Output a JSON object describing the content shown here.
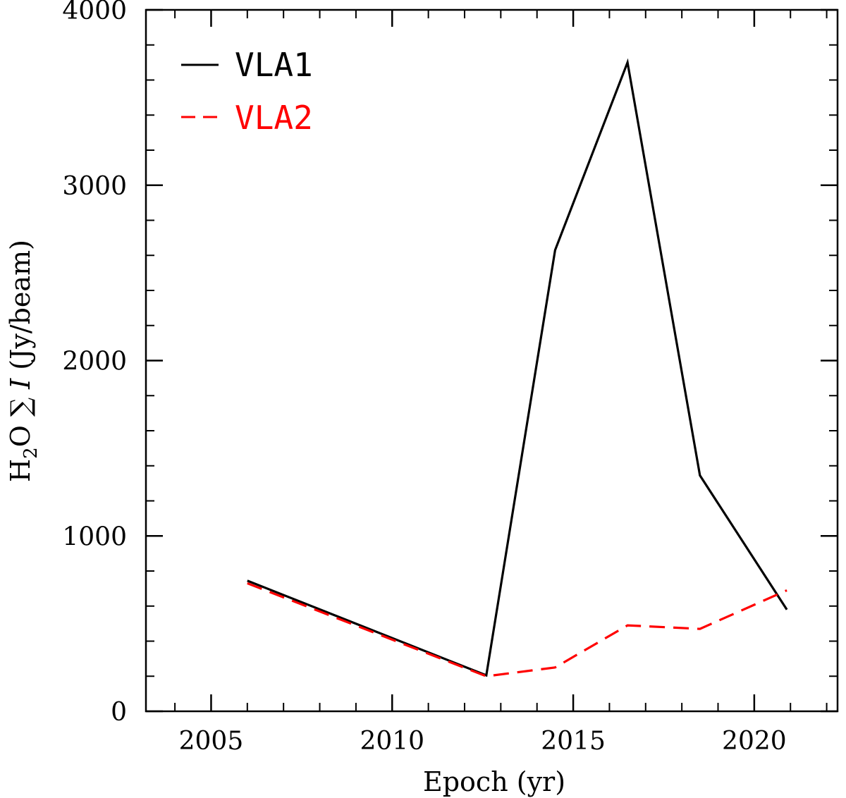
{
  "chart_data": {
    "type": "line",
    "xlabel": "Epoch (yr)",
    "ylabel_parts": {
      "prefix": "H",
      "subscript": "2",
      "middle": "O ∑ ",
      "italic": "I",
      "suffix": " (Jy/beam)"
    },
    "xlim": [
      2003.2,
      2022.3
    ],
    "ylim": [
      0,
      4000
    ],
    "x_ticks": [
      2005,
      2010,
      2015,
      2020
    ],
    "x_minor_step": 1,
    "y_ticks": [
      0,
      1000,
      2000,
      3000,
      4000
    ],
    "y_minor_step": 200,
    "series": [
      {
        "name": "VLA1",
        "color": "#000000",
        "dash": "solid",
        "x": [
          2006.0,
          2012.6,
          2014.5,
          2016.5,
          2018.5,
          2020.9
        ],
        "y": [
          745,
          205,
          2630,
          3700,
          1345,
          580
        ]
      },
      {
        "name": "VLA2",
        "color": "#ff0000",
        "dash": "dashed",
        "x": [
          2006.0,
          2012.6,
          2014.5,
          2016.5,
          2018.5,
          2020.9
        ],
        "y": [
          730,
          200,
          250,
          490,
          470,
          690
        ]
      }
    ],
    "legend_position": "top-left"
  }
}
